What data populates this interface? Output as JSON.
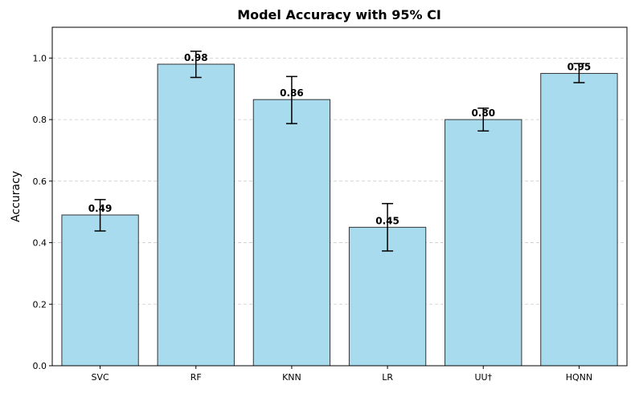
{
  "chart_data": {
    "type": "bar",
    "title": "Model Accuracy with 95% CI",
    "xlabel": "",
    "ylabel": "Accuracy",
    "categories": [
      "SVC",
      "RF",
      "KNN",
      "LR",
      "UU†",
      "HQNN"
    ],
    "values": [
      0.49,
      0.98,
      0.865,
      0.45,
      0.8,
      0.95
    ],
    "value_labels": [
      "0.49",
      "0.98",
      "0.86",
      "0.45",
      "0.80",
      "0.95"
    ],
    "ci_lower": [
      0.438,
      0.937,
      0.787,
      0.373,
      0.763,
      0.92
    ],
    "ci_upper": [
      0.54,
      1.022,
      0.94,
      0.527,
      0.837,
      0.982
    ],
    "ylim": [
      0,
      1.1
    ],
    "yticks": [
      0.0,
      0.2,
      0.4,
      0.6,
      0.8,
      1.0
    ],
    "ytick_labels": [
      "0.0",
      "0.2",
      "0.4",
      "0.6",
      "0.8",
      "1.0"
    ],
    "grid": "y-dashed",
    "bar_color": "#a8dbee",
    "bar_edge_color": "#333333",
    "error_bar_color": "#000000"
  }
}
